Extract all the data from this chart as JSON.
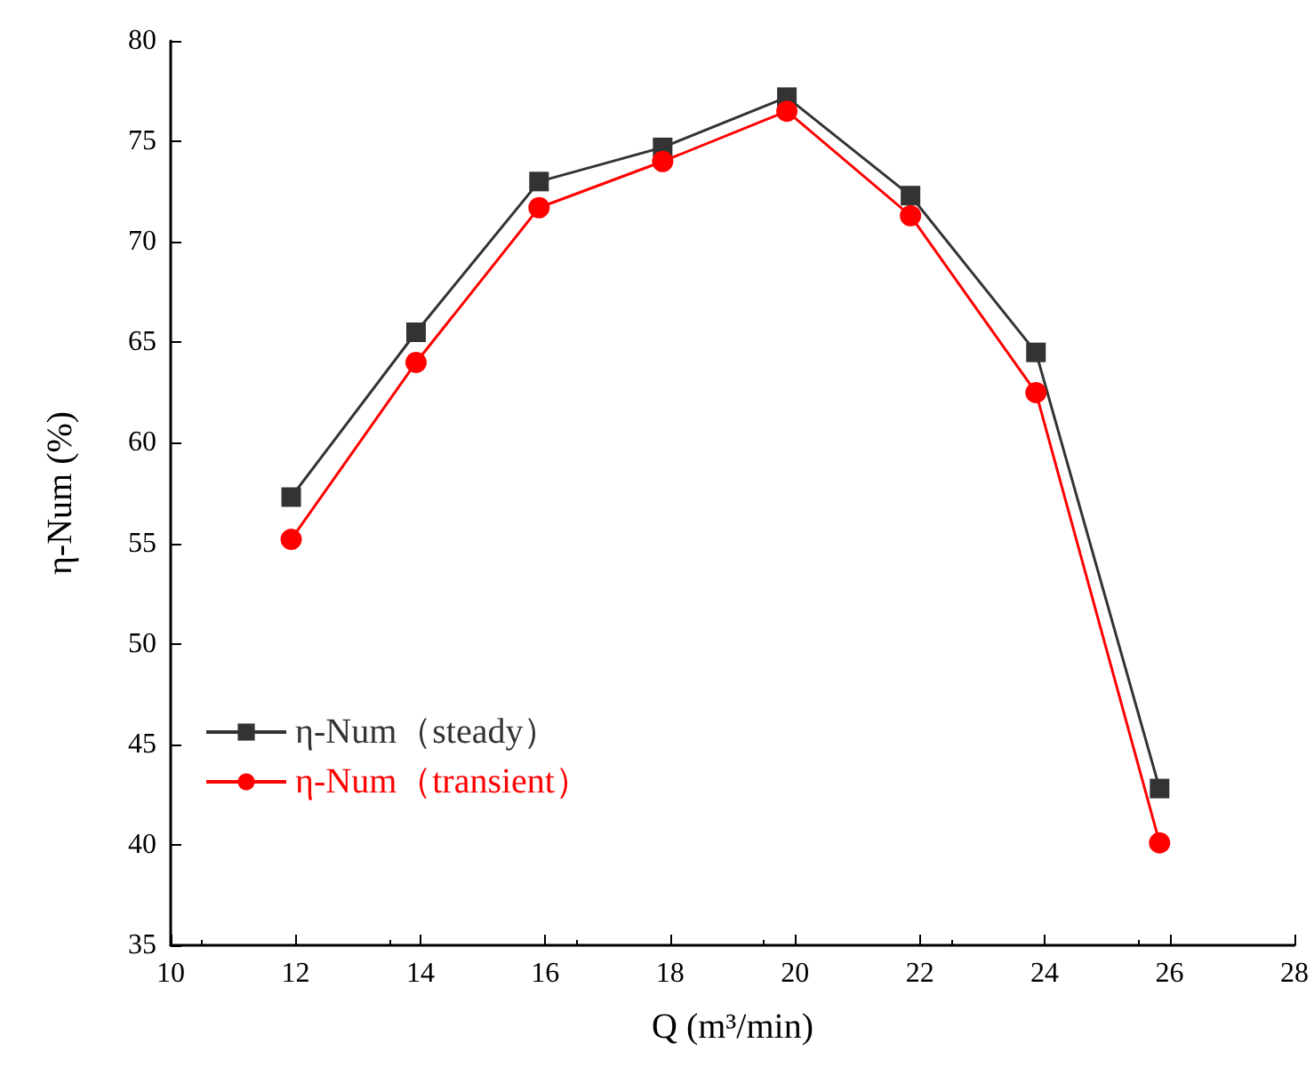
{
  "chart_data": {
    "type": "line",
    "xlabel": "Q (m³/min)",
    "ylabel": "η-Num (%)",
    "x": [
      11.93,
      13.93,
      15.9,
      17.88,
      19.87,
      21.85,
      23.86,
      25.84
    ],
    "series": [
      {
        "name": "η-Num（steady）",
        "color": "#333333",
        "marker": "square",
        "values": [
          57.3,
          65.5,
          73.0,
          74.7,
          77.2,
          72.3,
          64.5,
          42.8
        ]
      },
      {
        "name": "η-Num（transient）",
        "color": "#ff0000",
        "marker": "circle",
        "values": [
          55.2,
          64.0,
          71.7,
          74.0,
          76.5,
          71.3,
          62.5,
          40.1
        ]
      }
    ],
    "xlim": [
      10,
      28
    ],
    "xticks": [
      10,
      12,
      14,
      16,
      18,
      20,
      22,
      24,
      26,
      28
    ],
    "ylim": [
      35,
      80
    ],
    "yticks": [
      35,
      40,
      45,
      50,
      55,
      60,
      65,
      70,
      75,
      80
    ],
    "grid": false,
    "legend": "bottom left",
    "line_style": "solid"
  }
}
